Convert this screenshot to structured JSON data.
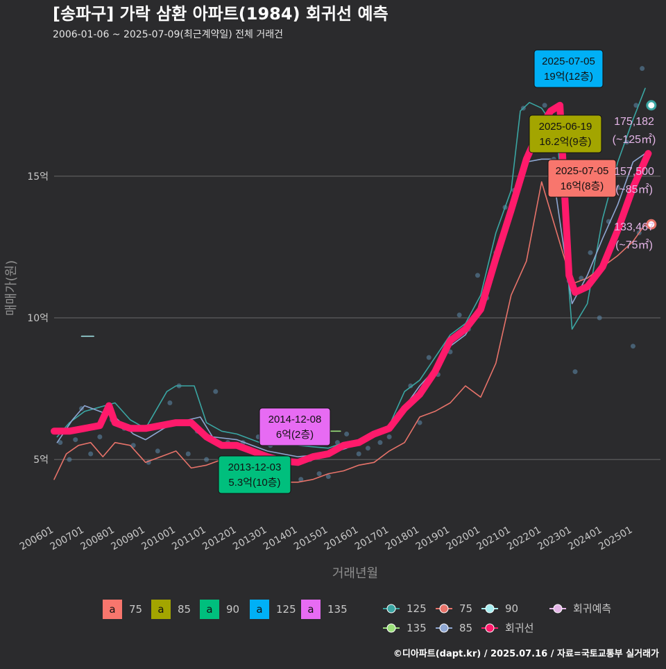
{
  "header": {
    "title": "[송파구] 가락 삼환 아파트(1984) 회귀선 예측",
    "subtitle": "2006-01-06 ~ 2025-07-09(최근계약일) 전체 거래건"
  },
  "caption": "©디아파트(dapt.kr) / 2025.07.16 / 자료=국토교통부 실거래가",
  "colors": {
    "background": "#2b2b2d",
    "a75": "#f8766d",
    "a85": "#a3a500",
    "a90": "#00bf7d",
    "a125": "#00b0f6",
    "a135": "#e76bf3",
    "line125": "#3aa6a3",
    "line75": "#e8736a",
    "line90": "#a7eef0",
    "line135": "#9be07a",
    "line85": "#8fa7d3",
    "regression": "#ff1a6b",
    "forecast": "#e5b6e8"
  },
  "chart_data": {
    "type": "line",
    "xlabel": "거래년월",
    "ylabel": "매매가(원)",
    "x_domain": [
      2006.0,
      2025.9
    ],
    "ylim": [
      2.8,
      19.6
    ],
    "y_ticks": [
      {
        "value": 5,
        "label": "5억"
      },
      {
        "value": 10,
        "label": "10억"
      },
      {
        "value": 15,
        "label": "15억"
      }
    ],
    "x_ticks": [
      {
        "value": 2006.0,
        "label": "200601"
      },
      {
        "value": 2007.0,
        "label": "200701"
      },
      {
        "value": 2008.0,
        "label": "200801"
      },
      {
        "value": 2009.0,
        "label": "200901"
      },
      {
        "value": 2010.0,
        "label": "201001"
      },
      {
        "value": 2011.0,
        "label": "201101"
      },
      {
        "value": 2012.0,
        "label": "201201"
      },
      {
        "value": 2013.0,
        "label": "201301"
      },
      {
        "value": 2014.0,
        "label": "201401"
      },
      {
        "value": 2015.0,
        "label": "201501"
      },
      {
        "value": 2016.0,
        "label": "201601"
      },
      {
        "value": 2017.0,
        "label": "201701"
      },
      {
        "value": 2018.0,
        "label": "201801"
      },
      {
        "value": 2019.0,
        "label": "201901"
      },
      {
        "value": 2020.0,
        "label": "202001"
      },
      {
        "value": 2021.0,
        "label": "202101"
      },
      {
        "value": 2022.0,
        "label": "202201"
      },
      {
        "value": 2023.0,
        "label": "202301"
      },
      {
        "value": 2024.0,
        "label": "202401"
      },
      {
        "value": 2025.0,
        "label": "202501"
      }
    ],
    "grid": true,
    "series": [
      {
        "name": "125",
        "color": "#3aa6a3",
        "values": [
          [
            2006.1,
            5.8
          ],
          [
            2006.5,
            6.3
          ],
          [
            2007.0,
            6.7
          ],
          [
            2008.0,
            7.0
          ],
          [
            2008.5,
            6.4
          ],
          [
            2009.0,
            6.1
          ],
          [
            2009.7,
            7.4
          ],
          [
            2010.0,
            7.6
          ],
          [
            2010.6,
            7.6
          ],
          [
            2011.0,
            6.3
          ],
          [
            2011.5,
            6.0
          ],
          [
            2012.0,
            5.9
          ],
          [
            2013.0,
            5.5
          ],
          [
            2014.0,
            5.5
          ],
          [
            2015.0,
            5.4
          ],
          [
            2015.5,
            5.6
          ],
          [
            2016.0,
            5.7
          ],
          [
            2016.5,
            5.9
          ],
          [
            2017.0,
            6.2
          ],
          [
            2017.5,
            7.4
          ],
          [
            2018.0,
            7.8
          ],
          [
            2018.5,
            8.6
          ],
          [
            2019.0,
            9.4
          ],
          [
            2019.5,
            9.8
          ],
          [
            2020.0,
            10.8
          ],
          [
            2020.5,
            13.0
          ],
          [
            2021.0,
            14.5
          ],
          [
            2021.3,
            17.3
          ],
          [
            2021.6,
            17.6
          ],
          [
            2022.0,
            17.4
          ],
          [
            2022.5,
            16.6
          ],
          [
            2023.0,
            9.6
          ],
          [
            2023.5,
            10.5
          ],
          [
            2024.0,
            13.5
          ],
          [
            2024.5,
            15.5
          ],
          [
            2025.0,
            17.0
          ],
          [
            2025.4,
            18.1
          ]
        ]
      },
      {
        "name": "75",
        "color": "#e8736a",
        "values": [
          [
            2006.0,
            4.3
          ],
          [
            2006.4,
            5.2
          ],
          [
            2006.8,
            5.5
          ],
          [
            2007.2,
            5.6
          ],
          [
            2007.6,
            5.1
          ],
          [
            2008.0,
            5.6
          ],
          [
            2008.5,
            5.5
          ],
          [
            2009.0,
            4.9
          ],
          [
            2009.5,
            5.1
          ],
          [
            2010.0,
            5.3
          ],
          [
            2010.5,
            4.7
          ],
          [
            2011.0,
            4.8
          ],
          [
            2011.5,
            5.0
          ],
          [
            2012.0,
            5.1
          ],
          [
            2012.5,
            4.9
          ],
          [
            2013.0,
            4.4
          ],
          [
            2013.5,
            4.2
          ],
          [
            2014.0,
            4.2
          ],
          [
            2014.5,
            4.3
          ],
          [
            2015.0,
            4.5
          ],
          [
            2015.5,
            4.6
          ],
          [
            2016.0,
            4.8
          ],
          [
            2016.5,
            4.9
          ],
          [
            2017.0,
            5.3
          ],
          [
            2017.5,
            5.6
          ],
          [
            2018.0,
            6.5
          ],
          [
            2018.5,
            6.7
          ],
          [
            2019.0,
            7.0
          ],
          [
            2019.5,
            7.6
          ],
          [
            2020.0,
            7.2
          ],
          [
            2020.5,
            8.4
          ],
          [
            2021.0,
            10.8
          ],
          [
            2021.5,
            12.0
          ],
          [
            2022.0,
            14.8
          ],
          [
            2023.0,
            11.2
          ],
          [
            2023.5,
            11.4
          ],
          [
            2024.0,
            11.8
          ],
          [
            2024.5,
            12.2
          ],
          [
            2025.0,
            12.7
          ],
          [
            2025.4,
            13.3
          ]
        ]
      },
      {
        "name": "90",
        "color": "#a7eef0",
        "values": [
          [
            2006.9,
            9.35
          ],
          [
            2007.3,
            9.35
          ]
        ]
      },
      {
        "name": "135",
        "color": "#9be07a",
        "values": [
          [
            2014.8,
            6.0
          ],
          [
            2015.4,
            6.0
          ]
        ]
      },
      {
        "name": "85",
        "color": "#8fa7d3",
        "values": [
          [
            2006.1,
            5.6
          ],
          [
            2006.6,
            6.4
          ],
          [
            2007.0,
            6.9
          ],
          [
            2008.0,
            6.5
          ],
          [
            2008.6,
            5.9
          ],
          [
            2009.0,
            5.7
          ],
          [
            2009.6,
            6.1
          ],
          [
            2010.0,
            6.3
          ],
          [
            2010.8,
            6.5
          ],
          [
            2011.2,
            5.8
          ],
          [
            2012.0,
            5.7
          ],
          [
            2013.0,
            5.3
          ],
          [
            2014.0,
            5.1
          ],
          [
            2015.0,
            5.2
          ],
          [
            2015.6,
            5.4
          ],
          [
            2016.0,
            5.6
          ],
          [
            2016.6,
            5.9
          ],
          [
            2017.0,
            6.2
          ],
          [
            2017.6,
            7.0
          ],
          [
            2018.0,
            7.6
          ],
          [
            2018.6,
            8.3
          ],
          [
            2019.0,
            9.0
          ],
          [
            2019.5,
            9.4
          ],
          [
            2020.0,
            10.3
          ],
          [
            2020.5,
            12.0
          ],
          [
            2021.0,
            13.9
          ],
          [
            2021.5,
            15.5
          ],
          [
            2022.0,
            15.6
          ],
          [
            2022.3,
            15.6
          ],
          [
            2023.0,
            10.5
          ],
          [
            2023.5,
            11.5
          ],
          [
            2024.0,
            12.8
          ],
          [
            2024.5,
            14.0
          ],
          [
            2025.0,
            15.5
          ],
          [
            2025.4,
            15.8
          ]
        ]
      },
      {
        "name": "회귀선",
        "color": "#ff1a6b",
        "values": [
          [
            2006.0,
            6.0
          ],
          [
            2006.5,
            6.0
          ],
          [
            2007.0,
            6.1
          ],
          [
            2007.5,
            6.2
          ],
          [
            2007.8,
            6.9
          ],
          [
            2008.0,
            6.3
          ],
          [
            2008.5,
            6.1
          ],
          [
            2009.0,
            6.1
          ],
          [
            2009.5,
            6.2
          ],
          [
            2010.0,
            6.3
          ],
          [
            2010.5,
            6.3
          ],
          [
            2011.0,
            5.8
          ],
          [
            2011.5,
            5.5
          ],
          [
            2012.0,
            5.5
          ],
          [
            2012.5,
            5.3
          ],
          [
            2013.0,
            5.1
          ],
          [
            2013.5,
            4.95
          ],
          [
            2014.0,
            4.9
          ],
          [
            2014.5,
            5.1
          ],
          [
            2015.0,
            5.2
          ],
          [
            2015.5,
            5.5
          ],
          [
            2016.0,
            5.6
          ],
          [
            2016.5,
            5.9
          ],
          [
            2017.0,
            6.1
          ],
          [
            2017.5,
            6.8
          ],
          [
            2018.0,
            7.3
          ],
          [
            2018.5,
            8.1
          ],
          [
            2019.0,
            9.2
          ],
          [
            2019.5,
            9.6
          ],
          [
            2020.0,
            10.3
          ],
          [
            2020.5,
            12.1
          ],
          [
            2021.0,
            13.8
          ],
          [
            2021.5,
            15.6
          ],
          [
            2022.0,
            16.8
          ],
          [
            2022.3,
            17.3
          ],
          [
            2022.6,
            17.5
          ],
          [
            2022.9,
            11.5
          ],
          [
            2023.1,
            10.9
          ],
          [
            2023.5,
            11.1
          ],
          [
            2024.0,
            11.8
          ],
          [
            2024.5,
            13.1
          ],
          [
            2025.0,
            14.6
          ],
          [
            2025.5,
            15.8
          ]
        ]
      }
    ],
    "scatter_points": [
      [
        2006.2,
        5.6
      ],
      [
        2006.5,
        5.0
      ],
      [
        2006.7,
        5.7
      ],
      [
        2006.9,
        6.8
      ],
      [
        2007.2,
        5.2
      ],
      [
        2007.5,
        5.8
      ],
      [
        2007.9,
        6.4
      ],
      [
        2008.3,
        6.1
      ],
      [
        2008.6,
        5.5
      ],
      [
        2009.1,
        4.9
      ],
      [
        2009.4,
        5.3
      ],
      [
        2009.8,
        7.0
      ],
      [
        2010.1,
        7.6
      ],
      [
        2010.4,
        5.2
      ],
      [
        2010.7,
        6.0
      ],
      [
        2011.0,
        5.0
      ],
      [
        2011.3,
        7.4
      ],
      [
        2011.7,
        5.6
      ],
      [
        2012.2,
        5.6
      ],
      [
        2012.7,
        5.8
      ],
      [
        2013.1,
        5.5
      ],
      [
        2013.4,
        4.3
      ],
      [
        2013.7,
        4.1
      ],
      [
        2014.1,
        4.3
      ],
      [
        2014.4,
        5.0
      ],
      [
        2014.7,
        4.5
      ],
      [
        2015.0,
        4.4
      ],
      [
        2015.3,
        5.6
      ],
      [
        2015.6,
        5.9
      ],
      [
        2016.0,
        5.2
      ],
      [
        2016.3,
        5.4
      ],
      [
        2016.7,
        5.6
      ],
      [
        2017.0,
        5.8
      ],
      [
        2017.3,
        6.6
      ],
      [
        2017.7,
        7.6
      ],
      [
        2018.0,
        6.3
      ],
      [
        2018.3,
        8.6
      ],
      [
        2018.6,
        8.0
      ],
      [
        2019.0,
        8.8
      ],
      [
        2019.3,
        10.1
      ],
      [
        2019.6,
        9.6
      ],
      [
        2019.9,
        11.5
      ],
      [
        2020.2,
        10.7
      ],
      [
        2020.5,
        12.3
      ],
      [
        2020.8,
        13.9
      ],
      [
        2021.1,
        14.5
      ],
      [
        2021.4,
        17.4
      ],
      [
        2021.7,
        16.9
      ],
      [
        2022.1,
        17.5
      ],
      [
        2022.4,
        15.6
      ],
      [
        2022.9,
        11.3
      ],
      [
        2023.1,
        8.1
      ],
      [
        2023.3,
        11.4
      ],
      [
        2023.6,
        12.3
      ],
      [
        2023.9,
        10.0
      ],
      [
        2024.2,
        13.4
      ],
      [
        2024.5,
        14.6
      ],
      [
        2024.8,
        16.2
      ],
      [
        2025.1,
        17.5
      ],
      [
        2025.3,
        18.8
      ],
      [
        2025.0,
        9.0
      ],
      [
        2025.2,
        13.0
      ]
    ],
    "label_boxes": [
      {
        "text": [
          "2025-07-05",
          "19억(12층)"
        ],
        "fill": "#00b0f6"
      },
      {
        "text": [
          "2025-06-19",
          "16.2억(9층)"
        ],
        "fill": "#a3a500"
      },
      {
        "text": [
          "2025-07-05",
          "16억(8층)"
        ],
        "fill": "#f8766d"
      },
      {
        "text": [
          "2014-12-08",
          "6억(2층)"
        ],
        "fill": "#e76bf3"
      },
      {
        "text": [
          "2013-12-03",
          "5.3억(10층)"
        ],
        "fill": "#00bf7d"
      }
    ],
    "forecast_labels": [
      {
        "value": "175,182",
        "area": "(~125㎡)"
      },
      {
        "value": "157,500",
        "area": "(~85㎡)"
      },
      {
        "value": "133,467",
        "area": "(~75㎡)"
      }
    ],
    "forecast_markers": [
      {
        "x": 2025.6,
        "y": 17.5,
        "color": "#3aa6a3"
      },
      {
        "x": 2025.6,
        "y": 13.3,
        "color": "#e8736a"
      }
    ],
    "legend_fill": [
      {
        "glyph": "a",
        "label": "75",
        "color": "#f8766d"
      },
      {
        "glyph": "a",
        "label": "85",
        "color": "#a3a500"
      },
      {
        "glyph": "a",
        "label": "90",
        "color": "#00bf7d"
      },
      {
        "glyph": "a",
        "label": "125",
        "color": "#00b0f6"
      },
      {
        "glyph": "a",
        "label": "135",
        "color": "#e76bf3"
      }
    ],
    "legend_line": [
      {
        "label": "125",
        "color": "#3aa6a3"
      },
      {
        "label": "75",
        "color": "#e8736a"
      },
      {
        "label": "90",
        "color": "#a7eef0"
      },
      {
        "label": "회귀예측",
        "color": "#e5b6e8"
      },
      {
        "label": "135",
        "color": "#9be07a"
      },
      {
        "label": "85",
        "color": "#8fa7d3"
      },
      {
        "label": "회귀선",
        "color": "#ff1a6b"
      }
    ]
  }
}
